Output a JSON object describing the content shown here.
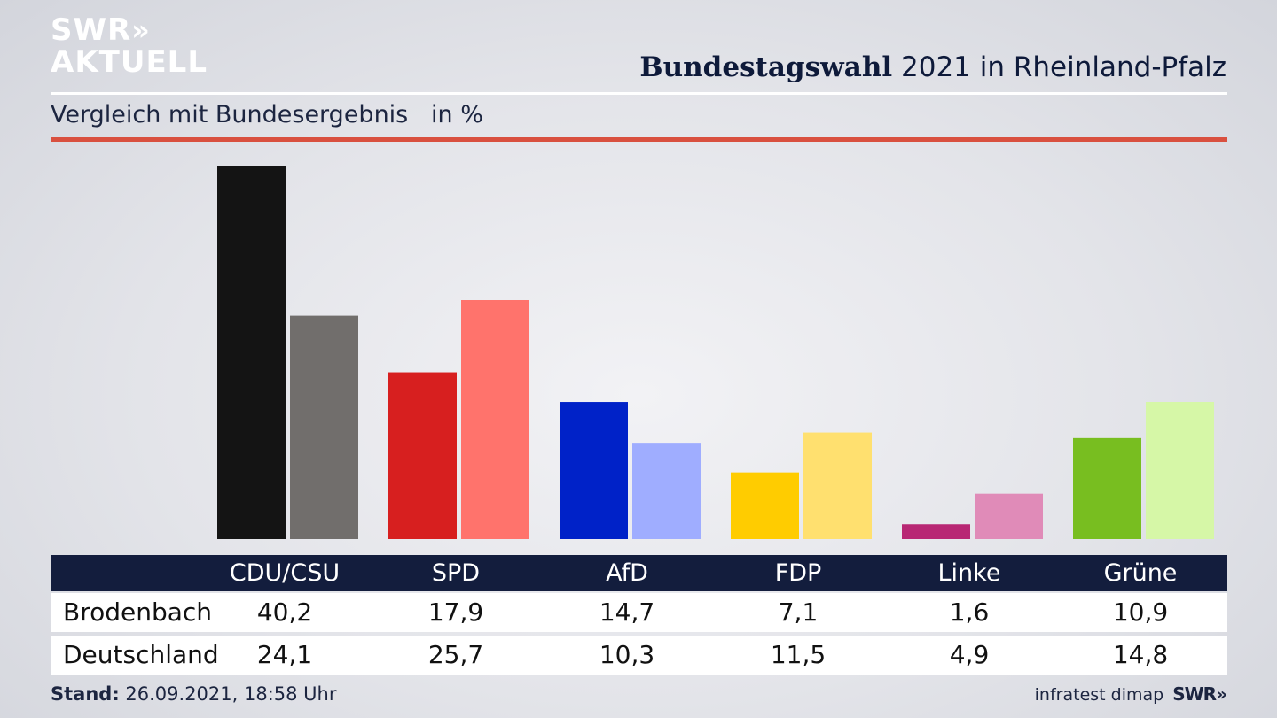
{
  "header": {
    "logo_line1": "SWR",
    "logo_arrows": "»",
    "logo_line2": "AKTUELL",
    "title_bold": "Bundestagswahl",
    "title_rest": " 2021 in Rheinland-Pfalz",
    "subtitle": "Vergleich mit Bundesergebnis",
    "unit": "in %"
  },
  "chart_data": {
    "type": "bar",
    "title": "Bundestagswahl 2021 in Rheinland-Pfalz",
    "subtitle": "Vergleich mit Bundesergebnis",
    "ylabel": "in %",
    "ylim": [
      0,
      40.2
    ],
    "grid": false,
    "categories": [
      "CDU/CSU",
      "SPD",
      "AfD",
      "FDP",
      "Linke",
      "Grüne"
    ],
    "series": [
      {
        "name": "Brodenbach",
        "values": [
          40.2,
          17.9,
          14.7,
          7.1,
          1.6,
          10.9
        ],
        "labels": [
          "40,2",
          "17,9",
          "14,7",
          "7,1",
          "1,6",
          "10,9"
        ],
        "colors": [
          "#141414",
          "#d71f1f",
          "#0022c8",
          "#ffcc00",
          "#b82774",
          "#78be20"
        ]
      },
      {
        "name": "Deutschland",
        "values": [
          24.1,
          25.7,
          10.3,
          11.5,
          4.9,
          14.8
        ],
        "labels": [
          "24,1",
          "25,7",
          "10,3",
          "11,5",
          "4,9",
          "14,8"
        ],
        "colors": [
          "#716e6c",
          "#ff736c",
          "#9fadff",
          "#ffe06f",
          "#e08bb8",
          "#d6f7a7"
        ]
      }
    ]
  },
  "footer": {
    "stand_label": "Stand:",
    "stand_value": " 26.09.2021, 18:58 Uhr",
    "source": "infratest dimap",
    "brand": "SWR»"
  }
}
